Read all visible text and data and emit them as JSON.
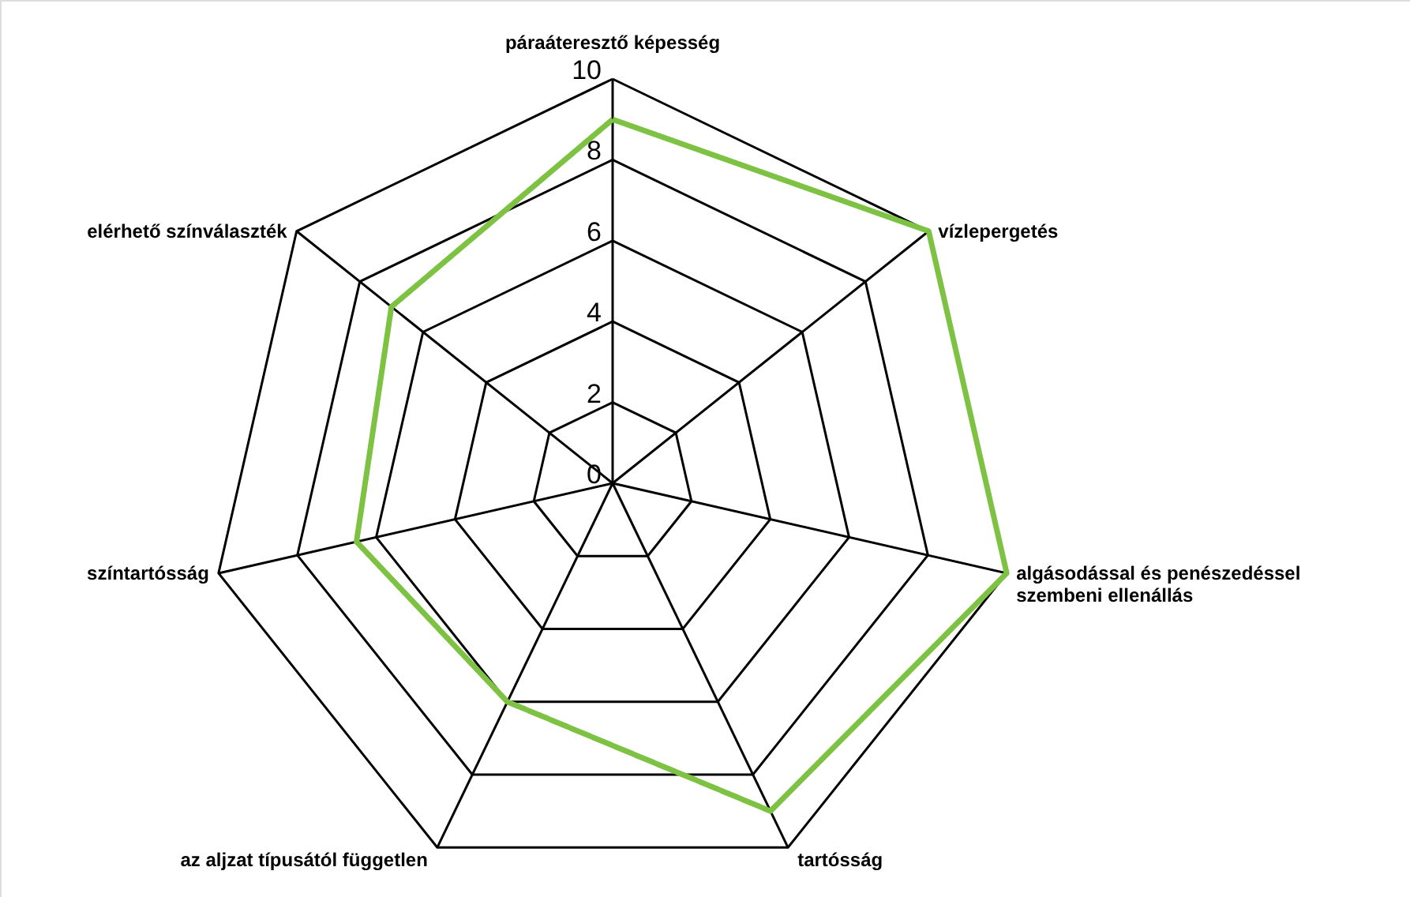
{
  "chart_data": {
    "type": "radar",
    "categories": [
      "páraáteresztő képesség",
      "vízlepergetés",
      "algásodással és penészedéssel\nszembeni ellenállás",
      "tartósság",
      "az aljzat típusától független",
      "színtartósság",
      "elérhető színválaszték"
    ],
    "series": [
      {
        "color": "#7dc242",
        "values": [
          9,
          10,
          10,
          9,
          6,
          6.5,
          7
        ]
      }
    ],
    "ylim": [
      0,
      10
    ],
    "yticks": [
      0,
      2,
      4,
      6,
      8,
      10
    ],
    "grid": true,
    "marker": "none",
    "line_style": "solid"
  }
}
